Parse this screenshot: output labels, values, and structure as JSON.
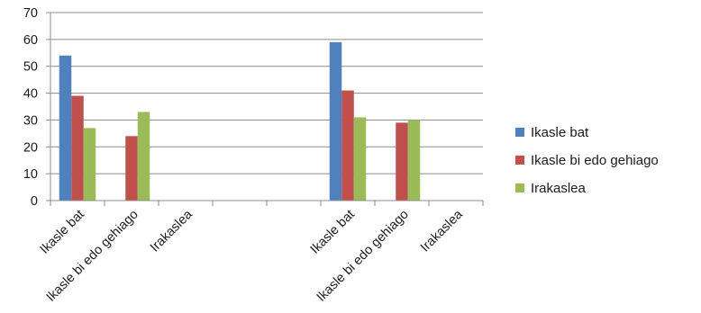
{
  "chart_data": {
    "type": "bar",
    "title": "",
    "xlabel": "",
    "ylabel": "",
    "ylim": [
      0,
      70
    ],
    "yticks": [
      0,
      10,
      20,
      30,
      40,
      50,
      60,
      70
    ],
    "grid": true,
    "legend_position": "right",
    "categories": [
      "Ikasle bat",
      "Ikasle bi edo gehiago",
      "Irakaslea",
      "",
      "",
      "Ikasle bat",
      "Ikasle bi edo gehiago",
      "Irakaslea"
    ],
    "series": [
      {
        "name": "Ikasle bat",
        "color": "#4f81bd",
        "values": [
          54,
          null,
          null,
          null,
          null,
          59,
          null,
          null
        ]
      },
      {
        "name": "Ikasle bi edo gehiago",
        "color": "#c0504d",
        "values": [
          39,
          24,
          null,
          null,
          null,
          41,
          29,
          null
        ]
      },
      {
        "name": "Irakaslea",
        "color": "#9bbb59",
        "values": [
          27,
          33,
          null,
          null,
          null,
          31,
          30,
          null
        ]
      }
    ]
  }
}
